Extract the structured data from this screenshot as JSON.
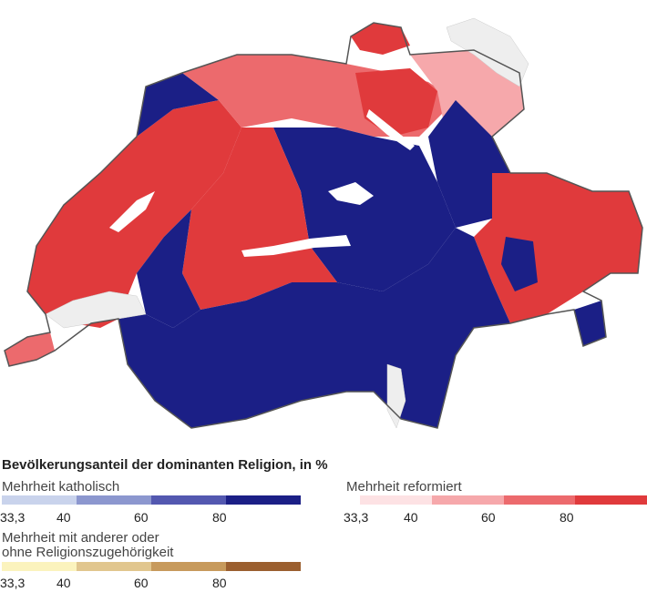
{
  "legend": {
    "title": "Bevölkerungsanteil der dominanten Religion, in %",
    "groups": [
      {
        "id": "katholisch",
        "label": "Mehrheit katholisch",
        "colors": [
          "#c9d3ec",
          "#8c97cf",
          "#5358b0",
          "#1b1f86"
        ],
        "ticks": [
          "33,3",
          "40",
          "60",
          "80"
        ]
      },
      {
        "id": "reformiert",
        "label": "Mehrheit reformiert",
        "colors": [
          "#fde2e4",
          "#f6a8ab",
          "#ec6a6d",
          "#e03a3c"
        ],
        "ticks": [
          "33,3",
          "40",
          "60",
          "80"
        ]
      },
      {
        "id": "andere",
        "label": "Mehrheit mit anderer oder ohne Religionszugehörigkeit",
        "label_line1": "Mehrheit mit anderer oder",
        "label_line2": "ohne Religionszugehörigkeit",
        "colors": [
          "#fbf3bd",
          "#e1c68e",
          "#c79a5c",
          "#9b5f2f"
        ],
        "ticks": [
          "33,3",
          "40",
          "60",
          "80"
        ]
      }
    ]
  },
  "map_colors": {
    "catholic": "#1b1f86",
    "reformed": "#e03a3c",
    "reformed_light": "#ec6a6d",
    "reformed_pale": "#f6a8ab",
    "catholic_mid": "#5358b0",
    "lake": "#ffffff",
    "foreign_lake": "#eeeeee",
    "border": "#555555"
  }
}
